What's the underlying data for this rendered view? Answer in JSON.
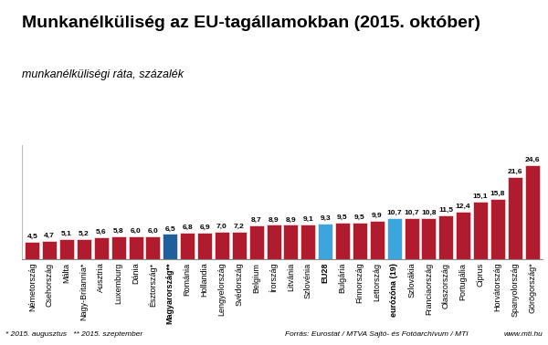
{
  "chart_data": {
    "type": "bar",
    "title": "Munkanélküliség az EU-tagállamokban (2015. október)",
    "subtitle": "munkanélküliségi ráta, százalék",
    "categories": [
      "Németország",
      "Csehország",
      "Málta",
      "Nagy-Britannia*",
      "Ausztria",
      "Luxemburg",
      "Dánia",
      "Észtország*",
      "Magyarország**",
      "Románia",
      "Hollandia",
      "Lengyelország",
      "Svédország",
      "Belgium",
      "Írország",
      "Litvánia",
      "Szlovénia",
      "EU28",
      "Bulgária",
      "Finnország",
      "Lettország",
      "eurózóna (19)",
      "Szlovákia",
      "Franciaország",
      "Olaszország",
      "Portugália",
      "Ciprus",
      "Horvátország",
      "Spanyolország",
      "Görögország*"
    ],
    "values": [
      4.5,
      4.7,
      5.1,
      5.2,
      5.6,
      5.8,
      6.0,
      6.0,
      6.5,
      6.8,
      6.9,
      7.0,
      7.2,
      8.7,
      8.9,
      8.9,
      9.1,
      9.3,
      9.5,
      9.5,
      9.9,
      10.7,
      10.7,
      10.8,
      11.5,
      12.4,
      15.1,
      15.8,
      21.6,
      24.6
    ],
    "value_labels": [
      "4,5",
      "4,7",
      "5,1",
      "5,2",
      "5,6",
      "5,8",
      "6,0",
      "6,0",
      "6,5",
      "6,8",
      "6,9",
      "7,0",
      "7,2",
      "8,7",
      "8,9",
      "8,9",
      "9,1",
      "9,3",
      "9,5",
      "9,5",
      "9,9",
      "10,7",
      "10,7",
      "10,8",
      "11,5",
      "12,4",
      "15,1",
      "15,8",
      "21,6",
      "24,6"
    ],
    "color": "#b01c2e",
    "colors": [
      "#b01c2e",
      "#b01c2e",
      "#b01c2e",
      "#b01c2e",
      "#b01c2e",
      "#b01c2e",
      "#b01c2e",
      "#b01c2e",
      "#1f5f9e",
      "#b01c2e",
      "#b01c2e",
      "#b01c2e",
      "#b01c2e",
      "#b01c2e",
      "#b01c2e",
      "#b01c2e",
      "#b01c2e",
      "#3aa6dd",
      "#b01c2e",
      "#b01c2e",
      "#b01c2e",
      "#3aa6dd",
      "#b01c2e",
      "#b01c2e",
      "#b01c2e",
      "#b01c2e",
      "#b01c2e",
      "#b01c2e",
      "#b01c2e",
      "#b01c2e"
    ],
    "ylim": [
      0,
      30
    ],
    "data_labels": true,
    "tick_labels": "x",
    "grid": false,
    "footnotes": [
      "* 2015. augusztus",
      "** 2015. szeptember"
    ],
    "source": "Forrás: Eurostat / MTVA Sajtó- és Fotóarchívum / MTI",
    "website": "www.mti.hu"
  }
}
